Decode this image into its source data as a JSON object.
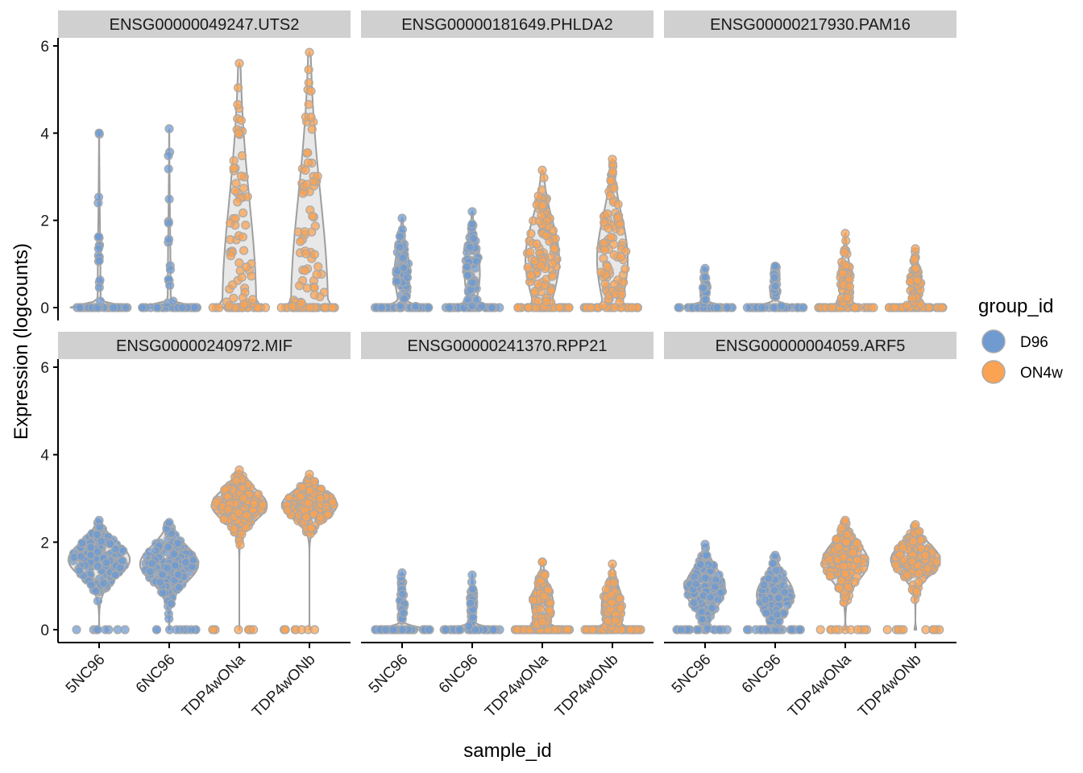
{
  "chart_data": {
    "type": "violin",
    "xlabel": "sample_id",
    "ylabel": "Expression (logcounts)",
    "ylim": [
      0,
      6
    ],
    "yticks": [
      0,
      2,
      4,
      6
    ],
    "categories": [
      "5NC96",
      "6NC96",
      "TDP4wONa",
      "TDP4wONb"
    ],
    "category_group": [
      "D96",
      "D96",
      "ON4w",
      "ON4w"
    ],
    "legend": {
      "title": "group_id",
      "entries": [
        {
          "label": "D96",
          "color": "#6f9bd1"
        },
        {
          "label": "ON4w",
          "color": "#f9a353"
        }
      ]
    },
    "panels": [
      {
        "title": "ENSG00000049247.UTS2",
        "max": [
          4.0,
          4.1,
          5.6,
          5.85
        ],
        "center": [
          0.0,
          0.0,
          0.0,
          0.0
        ],
        "density": [
          0.05,
          0.05,
          0.55,
          0.6
        ],
        "zero_frac": [
          0.9,
          0.9,
          0.2,
          0.2
        ]
      },
      {
        "title": "ENSG00000181649.PHLDA2",
        "max": [
          2.05,
          2.2,
          3.15,
          3.4
        ],
        "center": [
          0.8,
          0.8,
          1.1,
          1.1
        ],
        "density": [
          0.25,
          0.25,
          0.55,
          0.5
        ],
        "zero_frac": [
          0.55,
          0.55,
          0.2,
          0.2
        ]
      },
      {
        "title": "ENSG00000217930.PAM16",
        "max": [
          0.9,
          0.95,
          1.7,
          1.35
        ],
        "center": [
          0.5,
          0.5,
          0.55,
          0.5
        ],
        "density": [
          0.08,
          0.08,
          0.2,
          0.2
        ],
        "zero_frac": [
          0.75,
          0.75,
          0.45,
          0.45
        ]
      },
      {
        "title": "ENSG00000240972.MIF",
        "max": [
          2.5,
          2.45,
          3.65,
          3.55
        ],
        "center": [
          1.6,
          1.5,
          2.85,
          2.85
        ],
        "density": [
          1.0,
          0.95,
          0.9,
          0.9
        ],
        "zero_frac": [
          0.01,
          0.02,
          0.01,
          0.01
        ]
      },
      {
        "title": "ENSG00000241370.RPP21",
        "max": [
          1.3,
          1.25,
          1.55,
          1.5
        ],
        "center": [
          0.6,
          0.55,
          0.6,
          0.55
        ],
        "density": [
          0.08,
          0.08,
          0.35,
          0.35
        ],
        "zero_frac": [
          0.75,
          0.75,
          0.5,
          0.5
        ]
      },
      {
        "title": "ENSG00000004059.ARF5",
        "max": [
          1.95,
          1.7,
          2.5,
          2.4
        ],
        "center": [
          0.95,
          0.8,
          1.55,
          1.6
        ],
        "density": [
          0.65,
          0.6,
          0.75,
          0.8
        ],
        "zero_frac": [
          0.1,
          0.2,
          0.03,
          0.03
        ]
      }
    ]
  }
}
